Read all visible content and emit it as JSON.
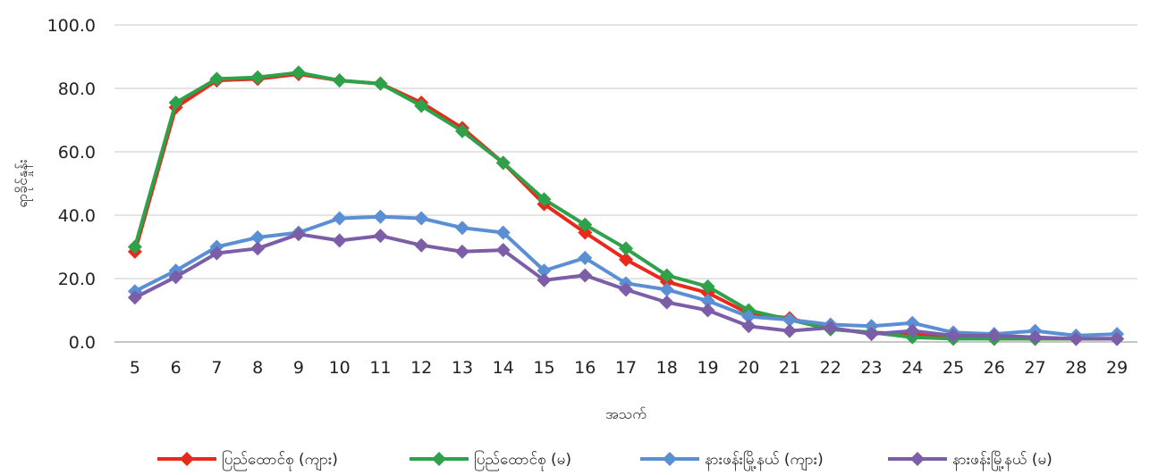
{
  "chart_data": {
    "type": "line",
    "xlabel": "အသက်",
    "ylabel": "ရာခိုင်နှုန်း",
    "x": [
      5,
      6,
      7,
      8,
      9,
      10,
      11,
      12,
      13,
      14,
      15,
      16,
      17,
      18,
      19,
      20,
      21,
      22,
      23,
      24,
      25,
      26,
      27,
      28,
      29
    ],
    "ylim": [
      0,
      100
    ],
    "yticks": [
      "0.0",
      "20.0",
      "40.0",
      "60.0",
      "80.0",
      "100.0"
    ],
    "grid": true,
    "legend_position": "bottom",
    "series": [
      {
        "name": "ပြည်ထောင်စု (ကျား)",
        "color": "#e8291c",
        "values": [
          28.5,
          74.0,
          82.5,
          83.0,
          84.5,
          82.5,
          81.5,
          75.5,
          67.5,
          56.5,
          43.5,
          34.5,
          26.0,
          19.0,
          15.5,
          9.0,
          7.5,
          4.0,
          3.0,
          2.5,
          1.5,
          1.0,
          1.0,
          1.0,
          1.0
        ]
      },
      {
        "name": "ပြည်ထောင်စု (မ)",
        "color": "#2ea24a",
        "values": [
          30.0,
          75.5,
          83.0,
          83.5,
          85.0,
          82.5,
          81.5,
          74.5,
          66.5,
          56.5,
          45.0,
          37.0,
          29.5,
          21.0,
          17.5,
          10.0,
          7.0,
          4.0,
          3.0,
          1.5,
          1.0,
          1.0,
          1.0,
          1.0,
          1.0
        ]
      },
      {
        "name": "နားဖန်းမြို့နယ် (ကျား)",
        "color": "#5b8fd4",
        "values": [
          16.0,
          22.5,
          30.0,
          33.0,
          34.5,
          39.0,
          39.5,
          39.0,
          36.0,
          34.5,
          22.5,
          26.5,
          18.5,
          16.5,
          13.0,
          8.0,
          7.0,
          5.5,
          5.0,
          6.0,
          3.0,
          2.5,
          3.5,
          2.0,
          2.5
        ]
      },
      {
        "name": "နားဖန်းမြို့နယ် (မ)",
        "color": "#7b5ea7",
        "values": [
          14.0,
          20.5,
          28.0,
          29.5,
          34.0,
          32.0,
          33.5,
          30.5,
          28.5,
          29.0,
          19.5,
          21.0,
          16.5,
          12.5,
          10.0,
          5.0,
          3.5,
          4.5,
          2.5,
          3.5,
          2.0,
          2.0,
          1.5,
          1.0,
          1.0
        ]
      }
    ]
  }
}
